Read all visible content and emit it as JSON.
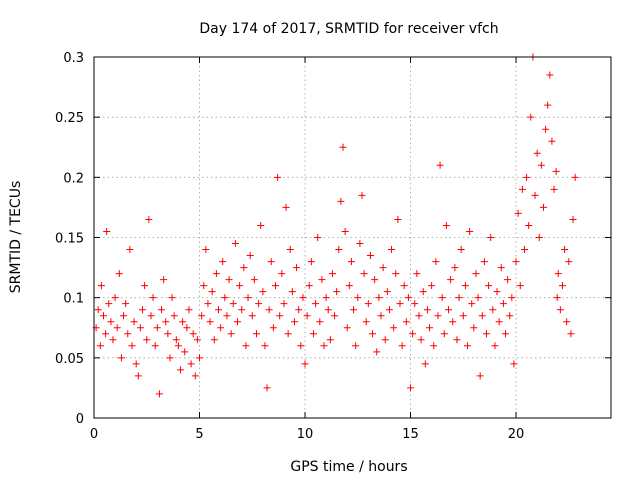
{
  "chart_data": {
    "type": "scatter",
    "title": "Day 174 of 2017, SRMTID for receiver vfch",
    "xlabel": "GPS time / hours",
    "ylabel": "SRMTID / TECUs",
    "xlim": [
      0,
      24.5
    ],
    "ylim": [
      0,
      0.3
    ],
    "xticks": [
      0,
      5,
      10,
      15,
      20
    ],
    "xtick_labels": [
      "0",
      "5",
      "10",
      "15",
      "20"
    ],
    "yticks": [
      0,
      0.05,
      0.1,
      0.15,
      0.2,
      0.25,
      0.3
    ],
    "ytick_labels": [
      "0",
      "0.05",
      "0.1",
      "0.15",
      "0.2",
      "0.25",
      "0.3"
    ],
    "grid": true,
    "marker": "+",
    "series": [
      {
        "name": "SRMTID",
        "color": "#ff0000",
        "points": [
          [
            0.1,
            0.075
          ],
          [
            0.2,
            0.09
          ],
          [
            0.3,
            0.06
          ],
          [
            0.35,
            0.11
          ],
          [
            0.45,
            0.085
          ],
          [
            0.55,
            0.07
          ],
          [
            0.6,
            0.155
          ],
          [
            0.7,
            0.095
          ],
          [
            0.8,
            0.08
          ],
          [
            0.9,
            0.065
          ],
          [
            1.0,
            0.1
          ],
          [
            1.1,
            0.075
          ],
          [
            1.2,
            0.12
          ],
          [
            1.3,
            0.05
          ],
          [
            1.4,
            0.085
          ],
          [
            1.5,
            0.095
          ],
          [
            1.6,
            0.07
          ],
          [
            1.7,
            0.14
          ],
          [
            1.8,
            0.06
          ],
          [
            1.9,
            0.08
          ],
          [
            2.0,
            0.045
          ],
          [
            2.1,
            0.035
          ],
          [
            2.2,
            0.075
          ],
          [
            2.3,
            0.09
          ],
          [
            2.4,
            0.11
          ],
          [
            2.5,
            0.065
          ],
          [
            2.6,
            0.165
          ],
          [
            2.7,
            0.085
          ],
          [
            2.8,
            0.1
          ],
          [
            2.9,
            0.06
          ],
          [
            3.0,
            0.075
          ],
          [
            3.1,
            0.02
          ],
          [
            3.2,
            0.09
          ],
          [
            3.3,
            0.115
          ],
          [
            3.4,
            0.08
          ],
          [
            3.5,
            0.07
          ],
          [
            3.6,
            0.05
          ],
          [
            3.7,
            0.1
          ],
          [
            3.8,
            0.085
          ],
          [
            3.9,
            0.065
          ],
          [
            4.0,
            0.06
          ],
          [
            4.1,
            0.04
          ],
          [
            4.2,
            0.08
          ],
          [
            4.3,
            0.055
          ],
          [
            4.4,
            0.075
          ],
          [
            4.5,
            0.09
          ],
          [
            4.6,
            0.045
          ],
          [
            4.7,
            0.07
          ],
          [
            4.8,
            0.035
          ],
          [
            4.9,
            0.065
          ],
          [
            5.0,
            0.05
          ],
          [
            5.1,
            0.085
          ],
          [
            5.2,
            0.11
          ],
          [
            5.3,
            0.14
          ],
          [
            5.4,
            0.095
          ],
          [
            5.5,
            0.08
          ],
          [
            5.6,
            0.105
          ],
          [
            5.7,
            0.065
          ],
          [
            5.8,
            0.12
          ],
          [
            5.9,
            0.09
          ],
          [
            6.0,
            0.075
          ],
          [
            6.1,
            0.13
          ],
          [
            6.2,
            0.1
          ],
          [
            6.3,
            0.085
          ],
          [
            6.4,
            0.115
          ],
          [
            6.5,
            0.07
          ],
          [
            6.6,
            0.095
          ],
          [
            6.7,
            0.145
          ],
          [
            6.8,
            0.08
          ],
          [
            6.9,
            0.11
          ],
          [
            7.0,
            0.09
          ],
          [
            7.1,
            0.125
          ],
          [
            7.2,
            0.06
          ],
          [
            7.3,
            0.1
          ],
          [
            7.4,
            0.135
          ],
          [
            7.5,
            0.085
          ],
          [
            7.6,
            0.115
          ],
          [
            7.7,
            0.07
          ],
          [
            7.8,
            0.095
          ],
          [
            7.9,
            0.16
          ],
          [
            8.0,
            0.105
          ],
          [
            8.1,
            0.06
          ],
          [
            8.2,
            0.025
          ],
          [
            8.3,
            0.09
          ],
          [
            8.4,
            0.13
          ],
          [
            8.5,
            0.075
          ],
          [
            8.6,
            0.11
          ],
          [
            8.7,
            0.2
          ],
          [
            8.8,
            0.085
          ],
          [
            8.9,
            0.12
          ],
          [
            9.0,
            0.095
          ],
          [
            9.1,
            0.175
          ],
          [
            9.2,
            0.07
          ],
          [
            9.3,
            0.14
          ],
          [
            9.4,
            0.105
          ],
          [
            9.5,
            0.08
          ],
          [
            9.6,
            0.125
          ],
          [
            9.7,
            0.09
          ],
          [
            9.8,
            0.06
          ],
          [
            9.9,
            0.1
          ],
          [
            10.0,
            0.045
          ],
          [
            10.1,
            0.085
          ],
          [
            10.2,
            0.11
          ],
          [
            10.3,
            0.13
          ],
          [
            10.4,
            0.07
          ],
          [
            10.5,
            0.095
          ],
          [
            10.6,
            0.15
          ],
          [
            10.7,
            0.08
          ],
          [
            10.8,
            0.115
          ],
          [
            10.9,
            0.06
          ],
          [
            11.0,
            0.1
          ],
          [
            11.1,
            0.09
          ],
          [
            11.2,
            0.065
          ],
          [
            11.3,
            0.12
          ],
          [
            11.4,
            0.085
          ],
          [
            11.5,
            0.105
          ],
          [
            11.6,
            0.14
          ],
          [
            11.7,
            0.18
          ],
          [
            11.8,
            0.225
          ],
          [
            11.9,
            0.155
          ],
          [
            12.0,
            0.075
          ],
          [
            12.1,
            0.11
          ],
          [
            12.2,
            0.13
          ],
          [
            12.3,
            0.09
          ],
          [
            12.4,
            0.06
          ],
          [
            12.5,
            0.1
          ],
          [
            12.6,
            0.145
          ],
          [
            12.7,
            0.185
          ],
          [
            12.8,
            0.12
          ],
          [
            12.9,
            0.08
          ],
          [
            13.0,
            0.095
          ],
          [
            13.1,
            0.135
          ],
          [
            13.2,
            0.07
          ],
          [
            13.3,
            0.115
          ],
          [
            13.4,
            0.055
          ],
          [
            13.5,
            0.1
          ],
          [
            13.6,
            0.085
          ],
          [
            13.7,
            0.125
          ],
          [
            13.8,
            0.065
          ],
          [
            13.9,
            0.105
          ],
          [
            14.0,
            0.09
          ],
          [
            14.1,
            0.14
          ],
          [
            14.2,
            0.075
          ],
          [
            14.3,
            0.12
          ],
          [
            14.4,
            0.165
          ],
          [
            14.5,
            0.095
          ],
          [
            14.6,
            0.06
          ],
          [
            14.7,
            0.11
          ],
          [
            14.8,
            0.08
          ],
          [
            14.9,
            0.1
          ],
          [
            15.0,
            0.025
          ],
          [
            15.1,
            0.07
          ],
          [
            15.2,
            0.095
          ],
          [
            15.3,
            0.12
          ],
          [
            15.4,
            0.085
          ],
          [
            15.5,
            0.065
          ],
          [
            15.6,
            0.105
          ],
          [
            15.7,
            0.045
          ],
          [
            15.8,
            0.09
          ],
          [
            15.9,
            0.075
          ],
          [
            16.0,
            0.11
          ],
          [
            16.1,
            0.06
          ],
          [
            16.2,
            0.13
          ],
          [
            16.3,
            0.085
          ],
          [
            16.4,
            0.21
          ],
          [
            16.5,
            0.1
          ],
          [
            16.6,
            0.07
          ],
          [
            16.7,
            0.16
          ],
          [
            16.8,
            0.09
          ],
          [
            16.9,
            0.115
          ],
          [
            17.0,
            0.08
          ],
          [
            17.1,
            0.125
          ],
          [
            17.2,
            0.065
          ],
          [
            17.3,
            0.1
          ],
          [
            17.4,
            0.14
          ],
          [
            17.5,
            0.085
          ],
          [
            17.6,
            0.11
          ],
          [
            17.7,
            0.06
          ],
          [
            17.8,
            0.155
          ],
          [
            17.9,
            0.095
          ],
          [
            18.0,
            0.075
          ],
          [
            18.1,
            0.12
          ],
          [
            18.2,
            0.1
          ],
          [
            18.3,
            0.035
          ],
          [
            18.4,
            0.085
          ],
          [
            18.5,
            0.13
          ],
          [
            18.6,
            0.07
          ],
          [
            18.7,
            0.11
          ],
          [
            18.8,
            0.15
          ],
          [
            18.9,
            0.09
          ],
          [
            19.0,
            0.06
          ],
          [
            19.1,
            0.105
          ],
          [
            19.2,
            0.08
          ],
          [
            19.3,
            0.125
          ],
          [
            19.4,
            0.095
          ],
          [
            19.5,
            0.07
          ],
          [
            19.6,
            0.115
          ],
          [
            19.7,
            0.085
          ],
          [
            19.8,
            0.1
          ],
          [
            19.9,
            0.045
          ],
          [
            20.0,
            0.13
          ],
          [
            20.1,
            0.17
          ],
          [
            20.2,
            0.11
          ],
          [
            20.3,
            0.19
          ],
          [
            20.4,
            0.14
          ],
          [
            20.5,
            0.2
          ],
          [
            20.6,
            0.16
          ],
          [
            20.7,
            0.25
          ],
          [
            20.8,
            0.3
          ],
          [
            20.9,
            0.185
          ],
          [
            21.0,
            0.22
          ],
          [
            21.1,
            0.15
          ],
          [
            21.2,
            0.21
          ],
          [
            21.3,
            0.175
          ],
          [
            21.4,
            0.24
          ],
          [
            21.5,
            0.26
          ],
          [
            21.6,
            0.285
          ],
          [
            21.7,
            0.23
          ],
          [
            21.8,
            0.19
          ],
          [
            21.9,
            0.205
          ],
          [
            21.95,
            0.1
          ],
          [
            22.0,
            0.12
          ],
          [
            22.1,
            0.09
          ],
          [
            22.2,
            0.11
          ],
          [
            22.3,
            0.14
          ],
          [
            22.4,
            0.08
          ],
          [
            22.5,
            0.13
          ],
          [
            22.6,
            0.07
          ],
          [
            22.7,
            0.165
          ],
          [
            22.8,
            0.2
          ]
        ]
      }
    ]
  }
}
